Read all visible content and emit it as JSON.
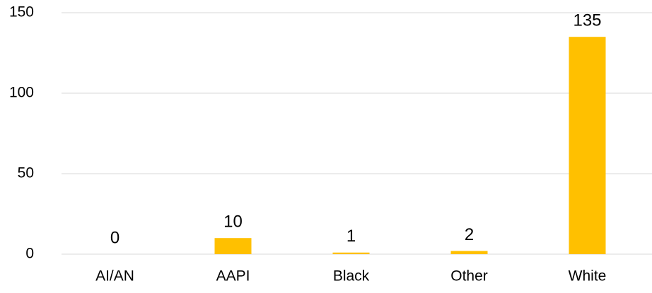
{
  "chart_data": {
    "type": "bar",
    "categories": [
      "AI/AN",
      "AAPI",
      "Black",
      "Other",
      "White"
    ],
    "values": [
      0,
      10,
      1,
      2,
      135
    ],
    "color": "#ffc000",
    "ylim": [
      0,
      150
    ],
    "yticks": [
      0,
      50,
      100,
      150
    ],
    "grid": true
  }
}
